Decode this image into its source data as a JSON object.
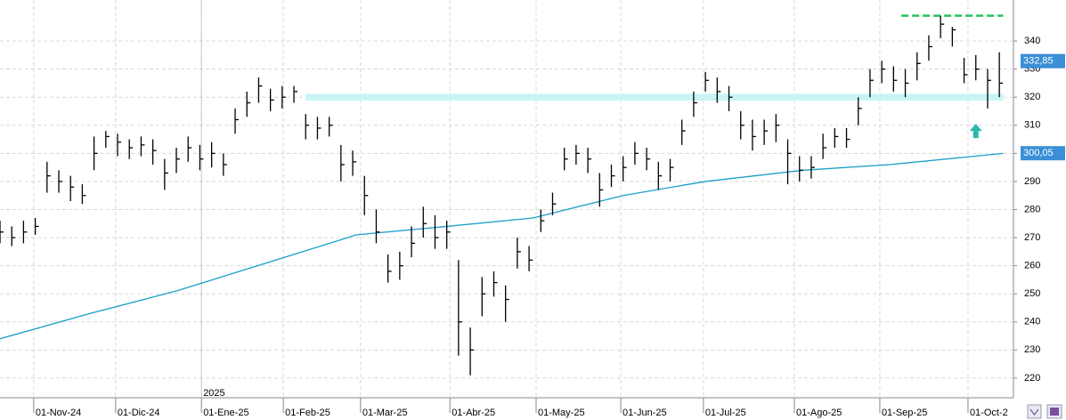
{
  "chart_data": {
    "type": "ohlc",
    "x": [
      0,
      3,
      6,
      9,
      12,
      15,
      18,
      21,
      24,
      27,
      30,
      33,
      36,
      39,
      42,
      45,
      48,
      51,
      54,
      57,
      60,
      63,
      66,
      69,
      72,
      75,
      78,
      81,
      84,
      87,
      90,
      93,
      96,
      99,
      102,
      105,
      108,
      111,
      114,
      117,
      120,
      123,
      126,
      129,
      132,
      135,
      138,
      141,
      144,
      147,
      150,
      153,
      156,
      159,
      162,
      165,
      168,
      171,
      174,
      177,
      180,
      183,
      186,
      189,
      192,
      195,
      198,
      201,
      204,
      207,
      210,
      213,
      216,
      219,
      222,
      225,
      228,
      231,
      234,
      237,
      240,
      243,
      246,
      249,
      252,
      255
    ],
    "high": [
      276,
      274,
      276,
      277,
      297,
      294,
      292,
      289,
      306,
      308,
      307,
      305,
      306,
      305,
      298,
      302,
      306,
      303,
      304,
      300,
      316,
      322,
      327,
      323,
      324,
      324,
      314,
      313,
      313,
      303,
      301,
      292,
      280,
      264,
      265,
      274,
      281,
      278,
      276,
      262,
      238,
      256,
      258,
      253,
      270,
      267,
      280,
      286,
      302,
      303,
      302,
      293,
      296,
      299,
      304,
      302,
      297,
      298,
      312,
      322,
      329,
      327,
      324,
      315,
      312,
      312,
      314,
      305,
      299,
      299,
      307,
      309,
      309,
      320,
      330,
      333,
      331,
      330,
      336,
      342,
      349,
      345,
      334,
      335,
      330,
      336
    ],
    "low": [
      268,
      267,
      268,
      271,
      286,
      286,
      283,
      282,
      294,
      302,
      299,
      298,
      299,
      296,
      287,
      293,
      297,
      294,
      295,
      292,
      307,
      313,
      318,
      315,
      316,
      318,
      305,
      305,
      306,
      290,
      292,
      278,
      268,
      254,
      255,
      263,
      270,
      266,
      266,
      228,
      221,
      242,
      249,
      240,
      259,
      258,
      272,
      278,
      294,
      296,
      293,
      281,
      288,
      290,
      296,
      294,
      287,
      290,
      303,
      313,
      322,
      318,
      315,
      305,
      301,
      303,
      304,
      289,
      290,
      291,
      298,
      302,
      302,
      310,
      320,
      325,
      322,
      320,
      326,
      333,
      341,
      338,
      325,
      326,
      316,
      320
    ],
    "close": [
      272,
      270,
      272,
      274,
      292,
      290,
      288,
      285,
      300,
      306,
      304,
      302,
      303,
      301,
      293,
      298,
      302,
      298,
      300,
      296,
      312,
      318,
      324,
      319,
      320,
      322,
      310,
      309,
      310,
      296,
      297,
      285,
      272,
      258,
      260,
      268,
      275,
      270,
      272,
      240,
      230,
      250,
      254,
      248,
      265,
      262,
      276,
      282,
      298,
      300,
      298,
      287,
      292,
      295,
      300,
      298,
      292,
      295,
      308,
      318,
      326,
      322,
      320,
      310,
      306,
      308,
      310,
      300,
      294,
      295,
      302,
      306,
      305,
      316,
      326,
      330,
      326,
      325,
      332,
      338,
      346,
      344,
      328,
      330,
      326,
      325
    ],
    "bar_color": "#000000",
    "moving_average": {
      "color": "#1a9fc9",
      "x": [
        0,
        23,
        45,
        68,
        91,
        114,
        136,
        159,
        180,
        205,
        227,
        256
      ],
      "values": [
        234,
        243,
        251,
        261,
        271,
        274,
        277,
        285,
        290,
        294,
        296,
        300
      ]
    },
    "resistance_band": {
      "color": "#c8f4f6",
      "x": [
        78,
        256
      ],
      "values": [
        318.8,
        321.2
      ]
    },
    "target_line": {
      "color": "#22c55e",
      "x": [
        230,
        256
      ],
      "value": 349
    },
    "last_labels": [
      {
        "value": 332.85,
        "label": "332,85",
        "color": "#3a8fd6"
      },
      {
        "value": 300.05,
        "label": "300,05",
        "color": "#3a8fd6"
      }
    ],
    "arrow": {
      "x": 249,
      "value": 308,
      "color": "#2bb7b0"
    },
    "year_marker": {
      "value": 51.4,
      "label": "2025"
    },
    "xlim": [
      0,
      258.6
    ],
    "ylim": [
      213,
      354.6
    ],
    "xticks": [
      {
        "value": 8.6,
        "label": "01-Nov-24"
      },
      {
        "value": 29.5,
        "label": "01-Dic-24"
      },
      {
        "value": 51.4,
        "label": "01-Ene-25"
      },
      {
        "value": 72.3,
        "label": "01-Feb-25"
      },
      {
        "value": 92,
        "label": "01-Mar-25"
      },
      {
        "value": 114.8,
        "label": "01-Abr-25"
      },
      {
        "value": 136.8,
        "label": "01-May-25"
      },
      {
        "value": 158.4,
        "label": "01-Jun-25"
      },
      {
        "value": 179.5,
        "label": "01-Jul-25"
      },
      {
        "value": 202.7,
        "label": "01-Ago-25"
      },
      {
        "value": 224.5,
        "label": "01-Sep-25"
      },
      {
        "value": 247,
        "label": "01-Oct-2"
      }
    ],
    "yticks": [
      220,
      230,
      240,
      250,
      260,
      270,
      280,
      290,
      300,
      310,
      320,
      330,
      340
    ],
    "grid": true
  }
}
